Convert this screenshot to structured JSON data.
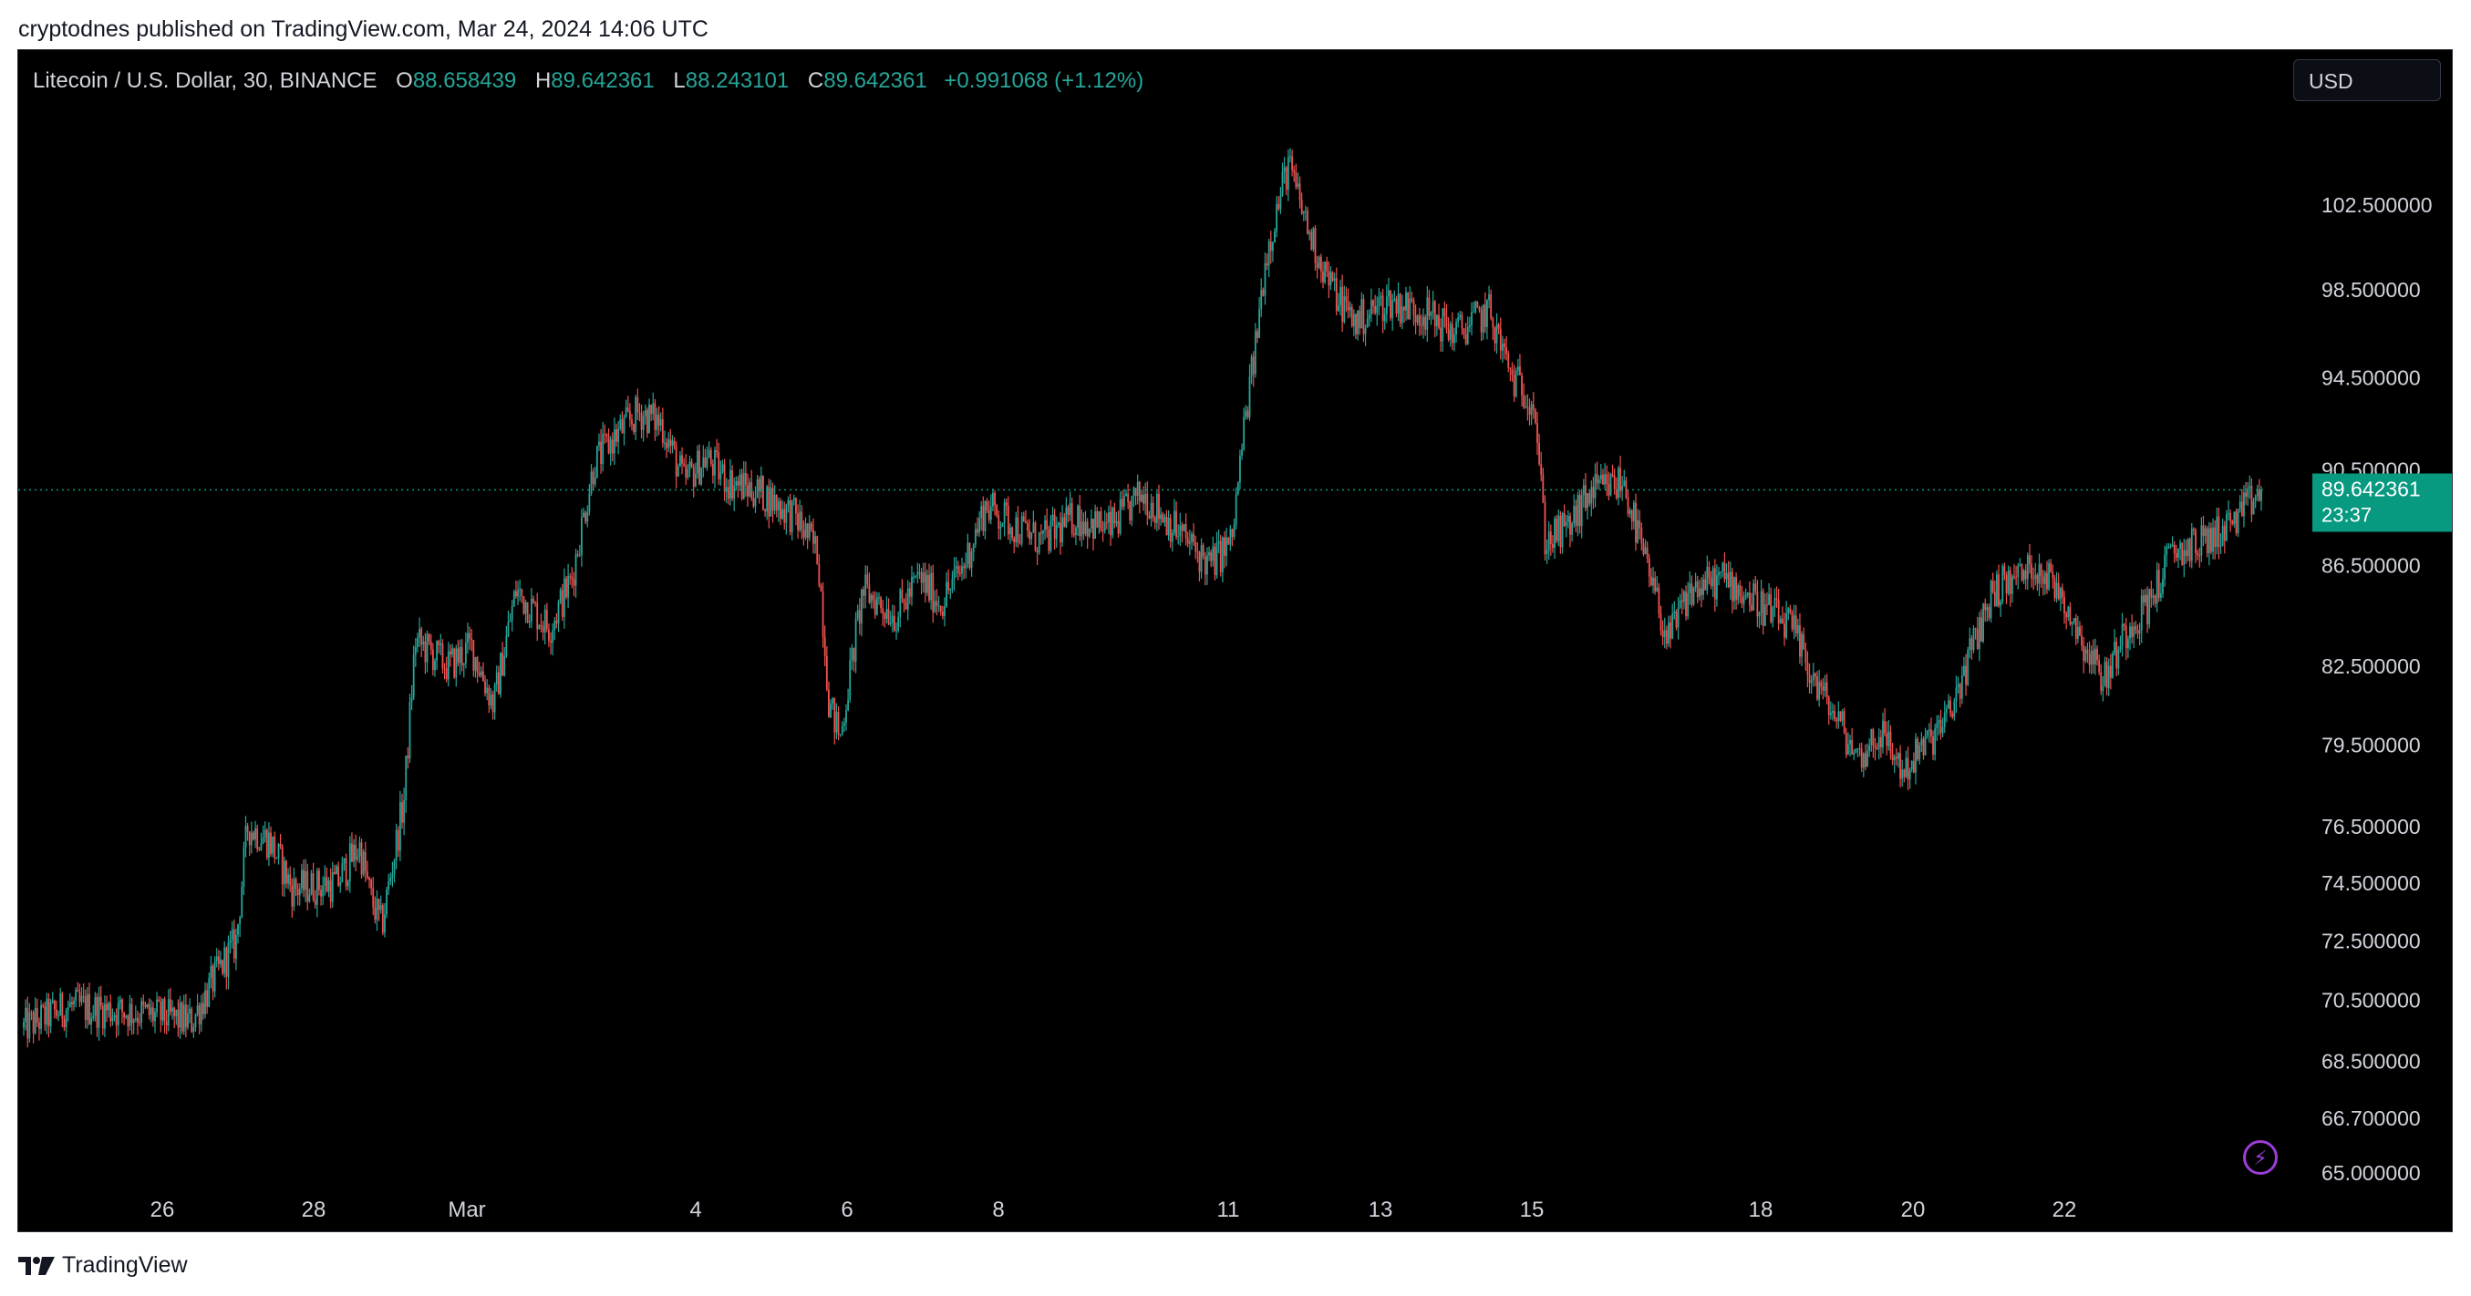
{
  "caption": "cryptodnes published on TradingView.com, Mar 24, 2024 14:06 UTC",
  "header": {
    "symbol": "Litecoin / U.S. Dollar, 30, BINANCE",
    "o_label": "O",
    "o_value": "88.658439",
    "h_label": "H",
    "h_value": "89.642361",
    "l_label": "L",
    "l_value": "88.243101",
    "c_label": "C",
    "c_value": "89.642361",
    "change": "+0.991068 (+1.12%)"
  },
  "currency_button": "USD",
  "footer": {
    "brand": "TradingView"
  },
  "colors": {
    "up": "#26a69a",
    "down": "#ef5350",
    "background": "#000000",
    "axis_text": "#d1d4dc",
    "last_price_bg": "#089981"
  },
  "icons": [
    "lightning-icon",
    "tradingview-logo-icon"
  ],
  "chart_data": {
    "type": "candlestick",
    "title": "Litecoin / U.S. Dollar, 30, BINANCE",
    "grid": false,
    "y_scale": "log",
    "y_ticks": [
      "102.500000",
      "98.500000",
      "94.500000",
      "90.500000",
      "86.500000",
      "82.500000",
      "79.500000",
      "76.500000",
      "74.500000",
      "72.500000",
      "70.500000",
      "68.500000",
      "66.700000",
      "65.000000"
    ],
    "x_ticks": [
      "26",
      "28",
      "Mar",
      "4",
      "6",
      "8",
      "11",
      "13",
      "15",
      "18",
      "20",
      "22"
    ],
    "last_price": "89.642361",
    "countdown": "23:37",
    "price_path": [
      {
        "t": 0.0,
        "p": 69.6
      },
      {
        "t": 0.02,
        "p": 70.3
      },
      {
        "t": 0.05,
        "p": 70.1
      },
      {
        "t": 0.075,
        "p": 69.8
      },
      {
        "t": 0.085,
        "p": 71.2
      },
      {
        "t": 0.095,
        "p": 72.5
      },
      {
        "t": 0.1,
        "p": 76.5
      },
      {
        "t": 0.11,
        "p": 76.0
      },
      {
        "t": 0.12,
        "p": 74.3
      },
      {
        "t": 0.14,
        "p": 74.5
      },
      {
        "t": 0.15,
        "p": 75.8
      },
      {
        "t": 0.155,
        "p": 74.0
      },
      {
        "t": 0.16,
        "p": 73.0
      },
      {
        "t": 0.17,
        "p": 77.5
      },
      {
        "t": 0.175,
        "p": 83.5
      },
      {
        "t": 0.19,
        "p": 82.5
      },
      {
        "t": 0.2,
        "p": 83.3
      },
      {
        "t": 0.21,
        "p": 81.0
      },
      {
        "t": 0.22,
        "p": 85.5
      },
      {
        "t": 0.235,
        "p": 84.0
      },
      {
        "t": 0.245,
        "p": 86.0
      },
      {
        "t": 0.255,
        "p": 90.8
      },
      {
        "t": 0.265,
        "p": 92.0
      },
      {
        "t": 0.275,
        "p": 93.0
      },
      {
        "t": 0.285,
        "p": 92.5
      },
      {
        "t": 0.295,
        "p": 90.0
      },
      {
        "t": 0.305,
        "p": 91.0
      },
      {
        "t": 0.315,
        "p": 90.0
      },
      {
        "t": 0.33,
        "p": 89.5
      },
      {
        "t": 0.345,
        "p": 88.5
      },
      {
        "t": 0.355,
        "p": 87.0
      },
      {
        "t": 0.36,
        "p": 81.0
      },
      {
        "t": 0.365,
        "p": 79.8
      },
      {
        "t": 0.375,
        "p": 85.5
      },
      {
        "t": 0.39,
        "p": 84.5
      },
      {
        "t": 0.4,
        "p": 86.0
      },
      {
        "t": 0.41,
        "p": 85.0
      },
      {
        "t": 0.42,
        "p": 86.5
      },
      {
        "t": 0.43,
        "p": 89.0
      },
      {
        "t": 0.445,
        "p": 88.0
      },
      {
        "t": 0.455,
        "p": 87.5
      },
      {
        "t": 0.47,
        "p": 88.5
      },
      {
        "t": 0.485,
        "p": 88.0
      },
      {
        "t": 0.5,
        "p": 89.5
      },
      {
        "t": 0.515,
        "p": 88.0
      },
      {
        "t": 0.53,
        "p": 86.5
      },
      {
        "t": 0.54,
        "p": 87.5
      },
      {
        "t": 0.545,
        "p": 92.0
      },
      {
        "t": 0.55,
        "p": 95.5
      },
      {
        "t": 0.555,
        "p": 100.0
      },
      {
        "t": 0.565,
        "p": 104.5
      },
      {
        "t": 0.575,
        "p": 101.0
      },
      {
        "t": 0.585,
        "p": 98.5
      },
      {
        "t": 0.595,
        "p": 97.0
      },
      {
        "t": 0.61,
        "p": 98.0
      },
      {
        "t": 0.625,
        "p": 97.5
      },
      {
        "t": 0.64,
        "p": 96.5
      },
      {
        "t": 0.655,
        "p": 97.5
      },
      {
        "t": 0.665,
        "p": 94.5
      },
      {
        "t": 0.675,
        "p": 93.5
      },
      {
        "t": 0.68,
        "p": 87.5
      },
      {
        "t": 0.69,
        "p": 88.0
      },
      {
        "t": 0.7,
        "p": 89.5
      },
      {
        "t": 0.715,
        "p": 90.0
      },
      {
        "t": 0.725,
        "p": 86.5
      },
      {
        "t": 0.735,
        "p": 83.5
      },
      {
        "t": 0.745,
        "p": 85.5
      },
      {
        "t": 0.76,
        "p": 86.0
      },
      {
        "t": 0.775,
        "p": 85.0
      },
      {
        "t": 0.79,
        "p": 84.0
      },
      {
        "t": 0.8,
        "p": 82.0
      },
      {
        "t": 0.81,
        "p": 80.5
      },
      {
        "t": 0.82,
        "p": 79.0
      },
      {
        "t": 0.83,
        "p": 80.0
      },
      {
        "t": 0.84,
        "p": 78.5
      },
      {
        "t": 0.85,
        "p": 79.5
      },
      {
        "t": 0.86,
        "p": 80.5
      },
      {
        "t": 0.87,
        "p": 83.0
      },
      {
        "t": 0.88,
        "p": 85.5
      },
      {
        "t": 0.89,
        "p": 86.0
      },
      {
        "t": 0.9,
        "p": 86.5
      },
      {
        "t": 0.91,
        "p": 85.5
      },
      {
        "t": 0.92,
        "p": 83.5
      },
      {
        "t": 0.93,
        "p": 82.0
      },
      {
        "t": 0.94,
        "p": 84.0
      },
      {
        "t": 0.95,
        "p": 85.0
      },
      {
        "t": 0.96,
        "p": 87.0
      },
      {
        "t": 0.975,
        "p": 87.5
      },
      {
        "t": 0.99,
        "p": 88.5
      },
      {
        "t": 1.0,
        "p": 89.64
      }
    ]
  }
}
